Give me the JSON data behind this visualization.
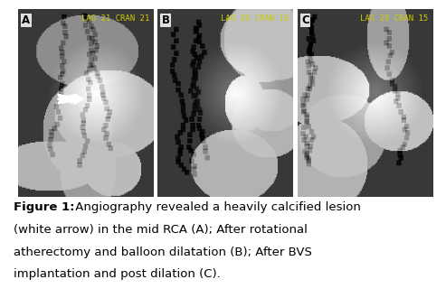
{
  "figure_title_bold": "Figure 1:",
  "figure_caption": " Angiography revealed a heavily calcified lesion (white arrow) in the mid RCA (A); After rotational atherectomy and balloon dilatation (B); After BVS implantation and post dilation (C).",
  "panel_labels": [
    "A",
    "B",
    "C"
  ],
  "panel_tags": [
    "LAO 21 CRAN 21",
    "LAO 20 CRAN 16",
    "LAO 20 CRAN 15"
  ],
  "outer_bg": "#f0f4fa",
  "inner_bg": "#ffffff",
  "border_color": "#b0c4de",
  "panel_bg": "#5a5a5a",
  "caption_fontsize": 9.5,
  "label_fontsize": 8.5,
  "tag_fontsize": 6.5,
  "fig_width": 4.93,
  "fig_height": 3.3
}
